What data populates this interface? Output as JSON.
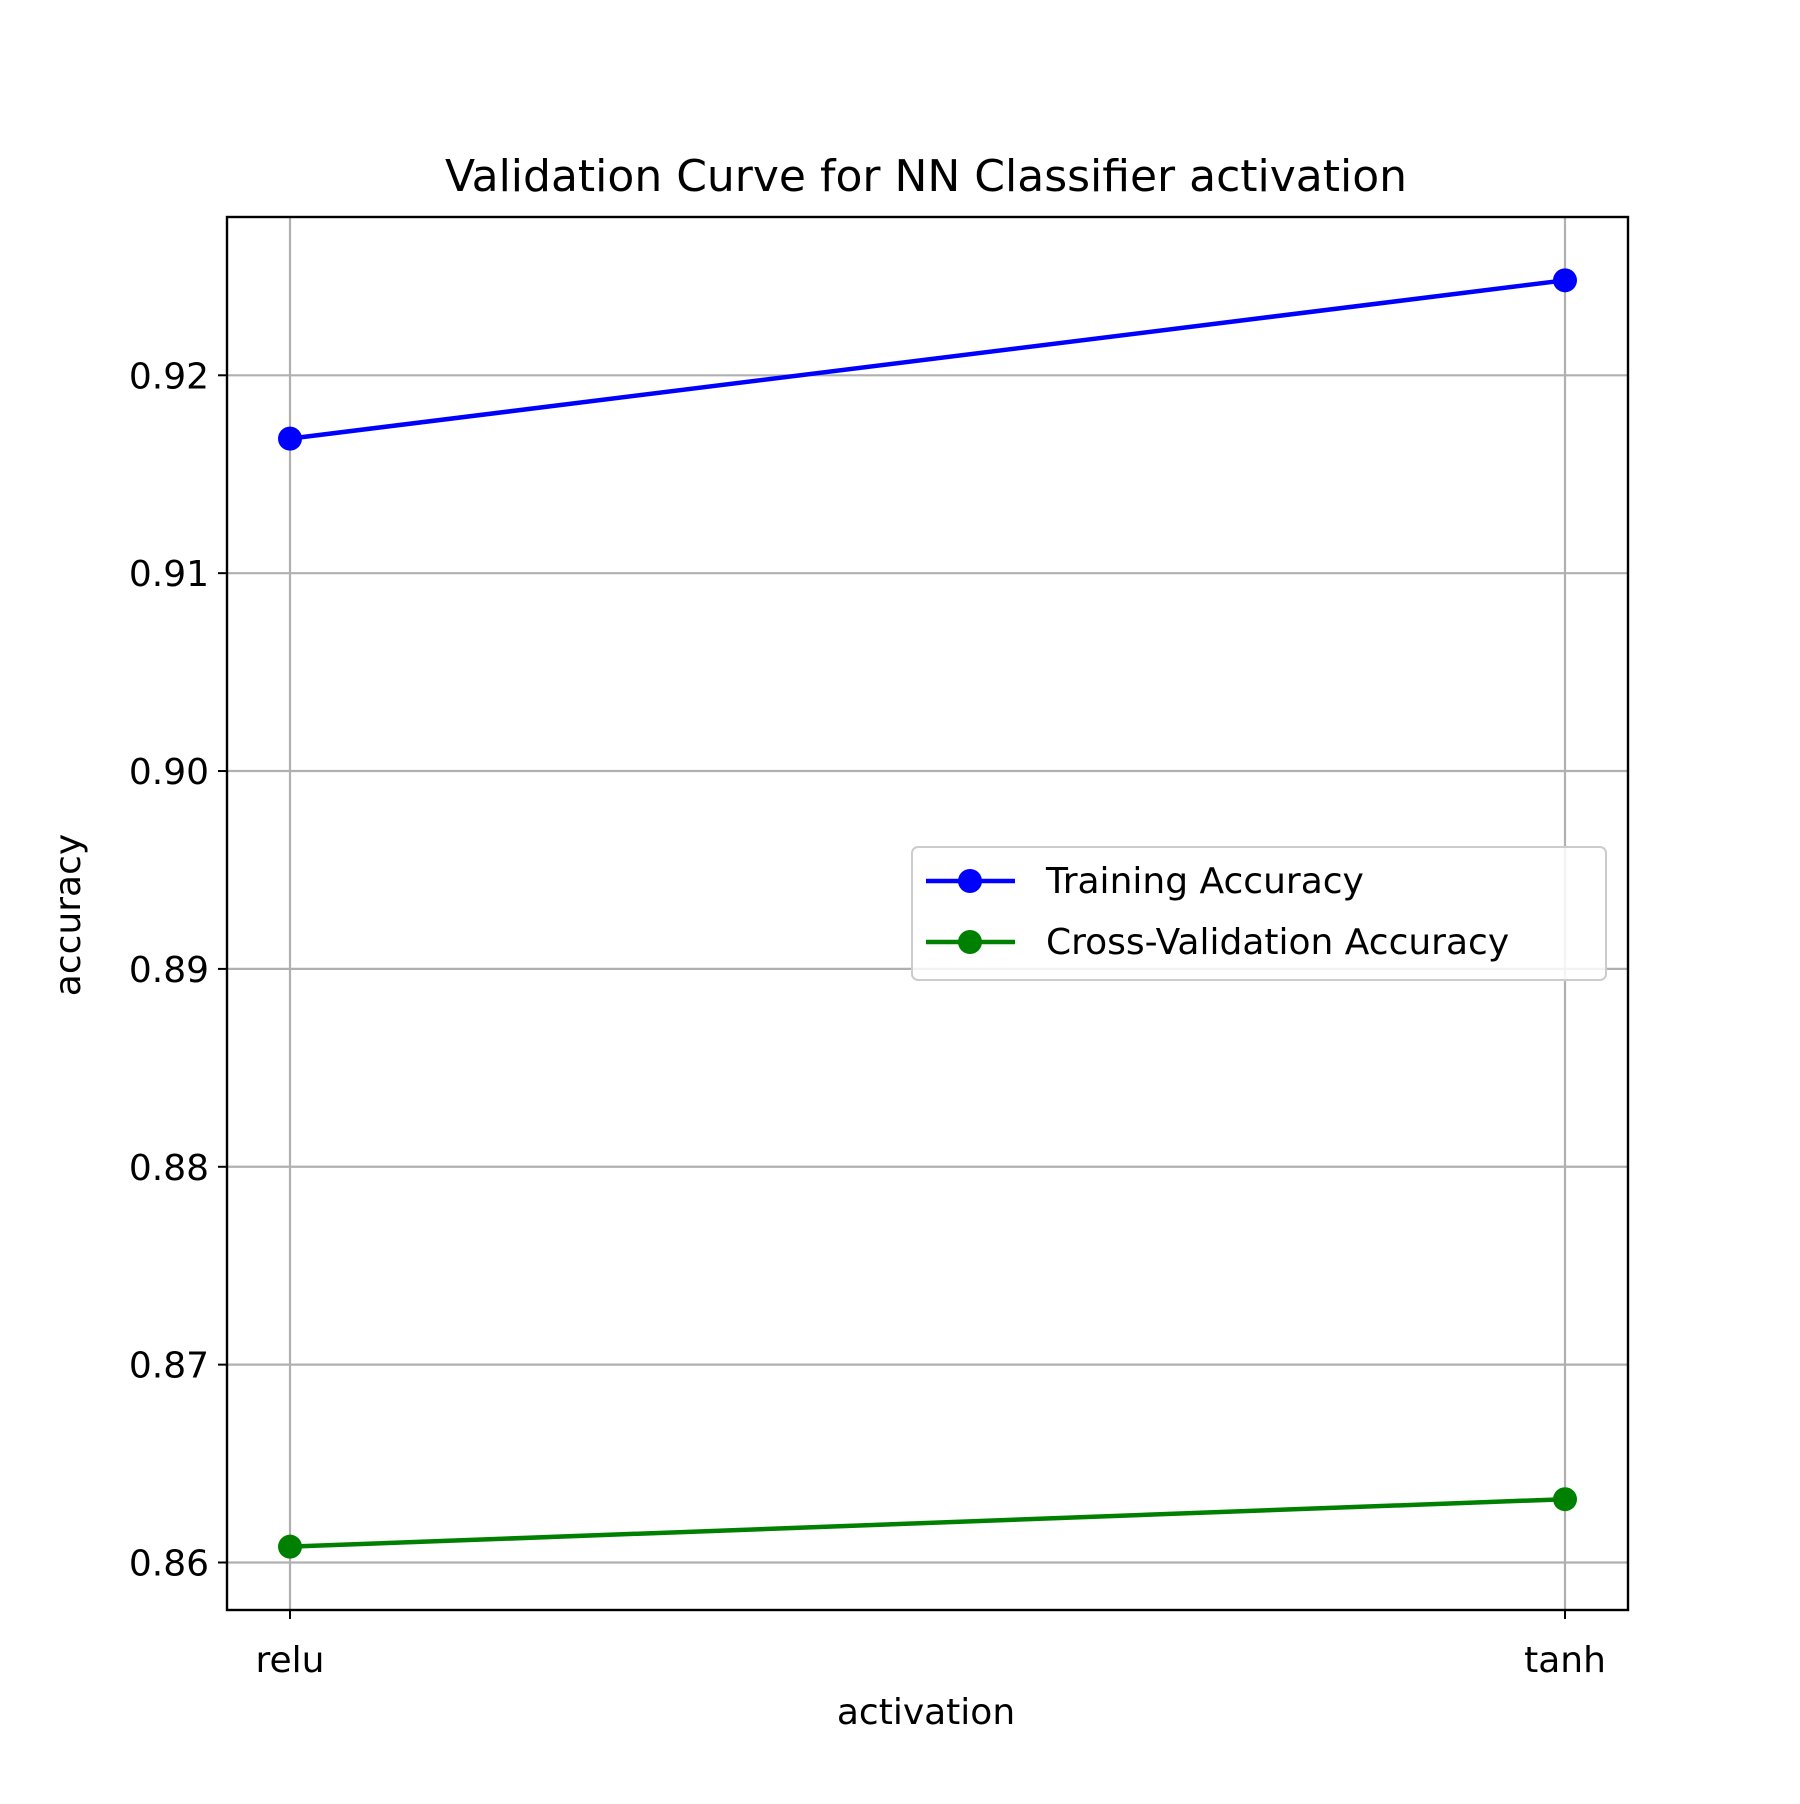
{
  "chart_data": {
    "type": "line",
    "title": "Validation Curve for NN Classifier activation",
    "xlabel": "activation",
    "ylabel": "accuracy",
    "categories": [
      "relu",
      "tanh"
    ],
    "ylim": [
      0.8576,
      0.928
    ],
    "yticks": [
      "0.86",
      "0.87",
      "0.88",
      "0.89",
      "0.90",
      "0.91",
      "0.92"
    ],
    "ytick_values": [
      0.86,
      0.87,
      0.88,
      0.89,
      0.9,
      0.91,
      0.92
    ],
    "grid": true,
    "legend_position": "center-right",
    "series": [
      {
        "name": "Training Accuracy",
        "values": [
          0.9168,
          0.9248
        ],
        "color": "#0000ff",
        "marker": "circle"
      },
      {
        "name": "Cross-Validation Accuracy",
        "values": [
          0.8608,
          0.8632
        ],
        "color": "#008000",
        "marker": "circle"
      }
    ]
  }
}
